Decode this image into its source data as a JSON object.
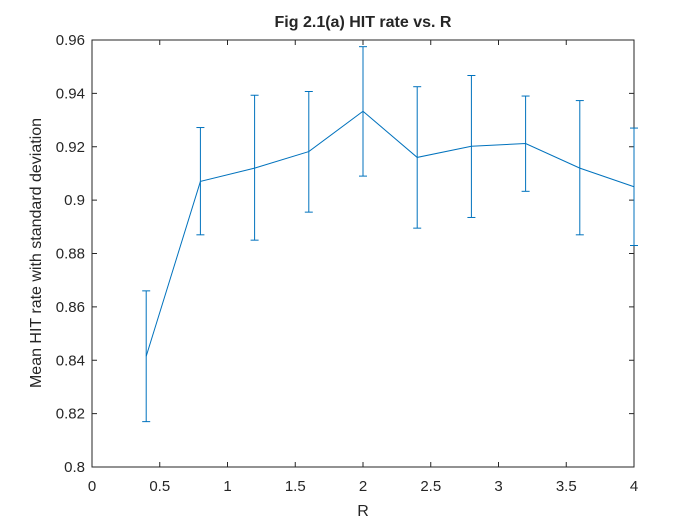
{
  "chart_data": {
    "type": "line",
    "title": "Fig 2.1(a) HIT rate vs. R",
    "xlabel": "R",
    "ylabel": "Mean HIT rate with standard deviation",
    "xlim": [
      0,
      4
    ],
    "ylim": [
      0.8,
      0.96
    ],
    "grid": false,
    "legend": "none",
    "x_ticks": [
      "0",
      "0.5",
      "1",
      "1.5",
      "2",
      "2.5",
      "3",
      "3.5",
      "4"
    ],
    "y_ticks": [
      "0.8",
      "0.82",
      "0.84",
      "0.86",
      "0.88",
      "0.9",
      "0.92",
      "0.94",
      "0.96"
    ],
    "series": [
      {
        "color": "#0072BD",
        "x": [
          0.4,
          0.8,
          1.2,
          1.6,
          2.0,
          2.4,
          2.8,
          3.2,
          3.6,
          4.0
        ],
        "y": [
          0.8415,
          0.907,
          0.912,
          0.9182,
          0.9333,
          0.916,
          0.9202,
          0.9212,
          0.912,
          0.905
        ],
        "error_low": [
          0.817,
          0.887,
          0.885,
          0.8955,
          0.909,
          0.8895,
          0.8935,
          0.9033,
          0.887,
          0.883
        ],
        "error_high": [
          0.866,
          0.9272,
          0.9393,
          0.9407,
          0.9575,
          0.9425,
          0.9467,
          0.939,
          0.9373,
          0.927
        ]
      }
    ]
  }
}
